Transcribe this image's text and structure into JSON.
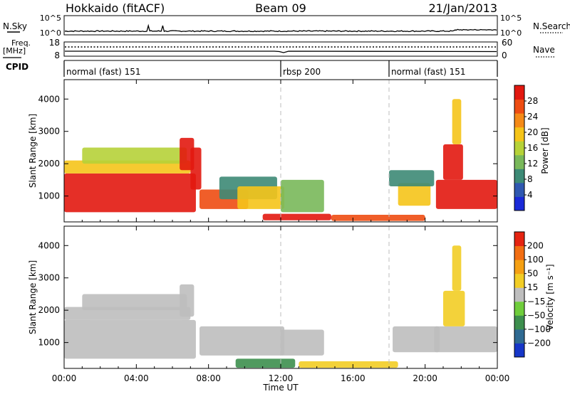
{
  "header": {
    "station": "Hokkaido (fitACF)",
    "beam": "Beam 09",
    "date": "21/Jan/2013"
  },
  "noise_panel": {
    "left_label": "N.Sky",
    "left_ticks": [
      "10^5",
      "10^0"
    ],
    "right_ticks": [
      "10^5",
      "10^0"
    ],
    "right_label": "N.Search"
  },
  "freq_panel": {
    "left_label_1": "Freq.",
    "left_label_2": "[MHz]",
    "left_ticks": [
      "18",
      "8"
    ],
    "right_ticks": [
      "60",
      "0"
    ],
    "right_label": "Nave"
  },
  "cpid_panel": {
    "label": "CPID",
    "segments": [
      {
        "start_hour": 0,
        "end_hour": 12,
        "label": "normal (fast) 151"
      },
      {
        "start_hour": 12,
        "end_hour": 18,
        "label": "rbsp 200"
      },
      {
        "start_hour": 18,
        "end_hour": 24,
        "label": "normal (fast) 151"
      }
    ]
  },
  "colors": {
    "power_scale": [
      "#1a2ad8",
      "#2f58b0",
      "#3d8a76",
      "#79b85a",
      "#b6d238",
      "#f5c419",
      "#f58a17",
      "#ee4c12",
      "#e2180f"
    ],
    "velocity_scale": [
      "#1636c8",
      "#2f6a92",
      "#3d8f4e",
      "#6fcd3b",
      "#bebebe",
      "#f2cd25",
      "#f5a013",
      "#f26e12",
      "#e52411"
    ],
    "vline": "#bdbdbd"
  },
  "chart_data": [
    {
      "type": "heatmap",
      "panel": "power",
      "xlabel": "",
      "ylabel": "Slant Range [km]",
      "xlim": [
        0,
        24
      ],
      "ylim": [
        200,
        4600
      ],
      "yticks": [
        1000,
        2000,
        3000,
        4000
      ],
      "ytick_labels": [
        "1000",
        "2000",
        "3000",
        "4000"
      ],
      "colorbar_label": "Power [dB]",
      "colorbar_ticks": [
        "28",
        "24",
        "20",
        "16",
        "12",
        "8",
        "4"
      ],
      "colorbar_range": [
        0,
        32
      ],
      "vertical_lines_hours": [
        12,
        18
      ],
      "regions": [
        {
          "t0": 0.0,
          "t1": 7.3,
          "r0": 500,
          "r1": 1700,
          "level": 30
        },
        {
          "t0": 0.0,
          "t1": 7.0,
          "r0": 1700,
          "r1": 2100,
          "level": 20
        },
        {
          "t0": 1.0,
          "t1": 6.8,
          "r0": 2000,
          "r1": 2500,
          "level": 17
        },
        {
          "t0": 6.4,
          "t1": 7.2,
          "r0": 1800,
          "r1": 2800,
          "level": 29
        },
        {
          "t0": 7.0,
          "t1": 7.6,
          "r0": 1200,
          "r1": 2500,
          "level": 30
        },
        {
          "t0": 7.5,
          "t1": 10.2,
          "r0": 600,
          "r1": 1200,
          "level": 27
        },
        {
          "t0": 8.6,
          "t1": 11.8,
          "r0": 900,
          "r1": 1600,
          "level": 9
        },
        {
          "t0": 9.6,
          "t1": 12.2,
          "r0": 600,
          "r1": 1300,
          "level": 19
        },
        {
          "t0": 12.0,
          "t1": 14.4,
          "r0": 500,
          "r1": 1500,
          "level": 11
        },
        {
          "t0": 11.0,
          "t1": 14.8,
          "r0": 250,
          "r1": 450,
          "level": 30
        },
        {
          "t0": 14.8,
          "t1": 20.0,
          "r0": 230,
          "r1": 420,
          "level": 25
        },
        {
          "t0": 18.5,
          "t1": 20.3,
          "r0": 700,
          "r1": 1400,
          "level": 21
        },
        {
          "t0": 18.0,
          "t1": 20.5,
          "r0": 1300,
          "r1": 1800,
          "level": 8
        },
        {
          "t0": 20.6,
          "t1": 24.0,
          "r0": 600,
          "r1": 1500,
          "level": 30
        },
        {
          "t0": 21.0,
          "t1": 22.1,
          "r0": 1500,
          "r1": 2600,
          "level": 29
        },
        {
          "t0": 21.5,
          "t1": 22.0,
          "r0": 2600,
          "r1": 4000,
          "level": 19
        }
      ]
    },
    {
      "type": "heatmap",
      "panel": "velocity",
      "xlabel": "Time UT",
      "ylabel": "Slant Range [km]",
      "xlim": [
        0,
        24
      ],
      "ylim": [
        200,
        4600
      ],
      "yticks": [
        1000,
        2000,
        3000,
        4000
      ],
      "ytick_labels": [
        "1000",
        "2000",
        "3000",
        "4000"
      ],
      "xtick_hours": [
        0,
        4,
        8,
        12,
        16,
        20,
        24
      ],
      "xtick_labels": [
        "00:00",
        "04:00",
        "08:00",
        "12:00",
        "16:00",
        "20:00",
        "00:00"
      ],
      "colorbar_label": "Velocity [m s⁻¹]",
      "colorbar_ticks": [
        "200",
        "100",
        "50",
        "15",
        "−15",
        "−50",
        "−100",
        "−200"
      ],
      "colorbar_range": [
        -250,
        250
      ],
      "vertical_lines_hours": [
        12,
        18
      ],
      "regions": [
        {
          "t0": 0.0,
          "t1": 7.3,
          "r0": 500,
          "r1": 1700,
          "level": 0
        },
        {
          "t0": 0.0,
          "t1": 7.0,
          "r0": 1700,
          "r1": 2100,
          "level": 0
        },
        {
          "t0": 1.0,
          "t1": 6.8,
          "r0": 2000,
          "r1": 2500,
          "level": 0
        },
        {
          "t0": 6.4,
          "t1": 7.2,
          "r0": 1800,
          "r1": 2800,
          "level": 0
        },
        {
          "t0": 7.5,
          "t1": 12.2,
          "r0": 600,
          "r1": 1500,
          "level": 0
        },
        {
          "t0": 12.0,
          "t1": 14.4,
          "r0": 600,
          "r1": 1400,
          "level": 0
        },
        {
          "t0": 9.5,
          "t1": 12.8,
          "r0": 220,
          "r1": 500,
          "level": -120
        },
        {
          "t0": 13.0,
          "t1": 18.5,
          "r0": 220,
          "r1": 420,
          "level": 40
        },
        {
          "t0": 18.2,
          "t1": 20.8,
          "r0": 700,
          "r1": 1500,
          "level": 0
        },
        {
          "t0": 20.5,
          "t1": 24.0,
          "r0": 700,
          "r1": 1500,
          "level": 0
        },
        {
          "t0": 21.0,
          "t1": 22.2,
          "r0": 1500,
          "r1": 2600,
          "level": 45
        },
        {
          "t0": 21.5,
          "t1": 22.0,
          "r0": 2600,
          "r1": 4000,
          "level": 45
        }
      ]
    }
  ]
}
